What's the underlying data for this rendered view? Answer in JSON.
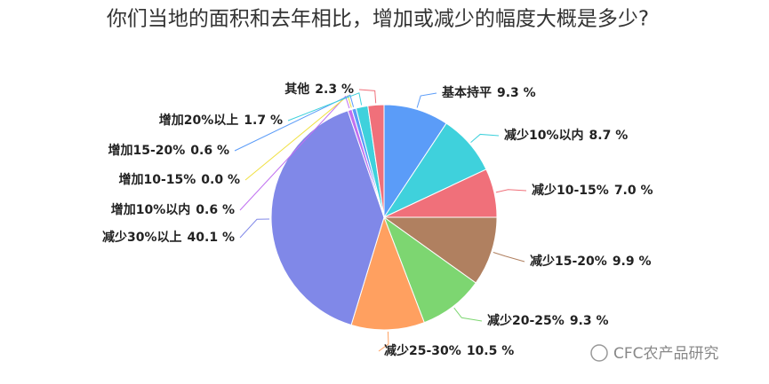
{
  "chart_data": {
    "type": "pie",
    "title": "你们当地的面积和去年相比，增加或减少的幅度大概是多少?",
    "categories": [
      "基本持平",
      "减少10%以内",
      "减少10-15%",
      "减少15-20%",
      "减少20-25%",
      "减少25-30%",
      "减少30%以上",
      "增加10%以内",
      "增加10-15%",
      "增加15-20%",
      "增加20%以上",
      "其他"
    ],
    "values": [
      9.3,
      8.7,
      7.0,
      9.9,
      9.3,
      10.5,
      40.1,
      0.6,
      0.0,
      0.6,
      1.7,
      2.3
    ],
    "value_labels": [
      "9.3 %",
      "8.7 %",
      "7.0 %",
      "9.9 %",
      "9.3 %",
      "10.5 %",
      "40.1 %",
      "0.6 %",
      "0.0 %",
      "0.6 %",
      "1.7 %",
      "2.3 %"
    ],
    "colors": [
      "#5b9cf8",
      "#3fd1dc",
      "#f0707a",
      "#b08060",
      "#7dd671",
      "#ffa060",
      "#8088e8",
      "#c070f0",
      "#f0e040",
      "#5b9cf8",
      "#3fd1dc",
      "#f0707a"
    ]
  },
  "watermark": "CFC农产品研究"
}
